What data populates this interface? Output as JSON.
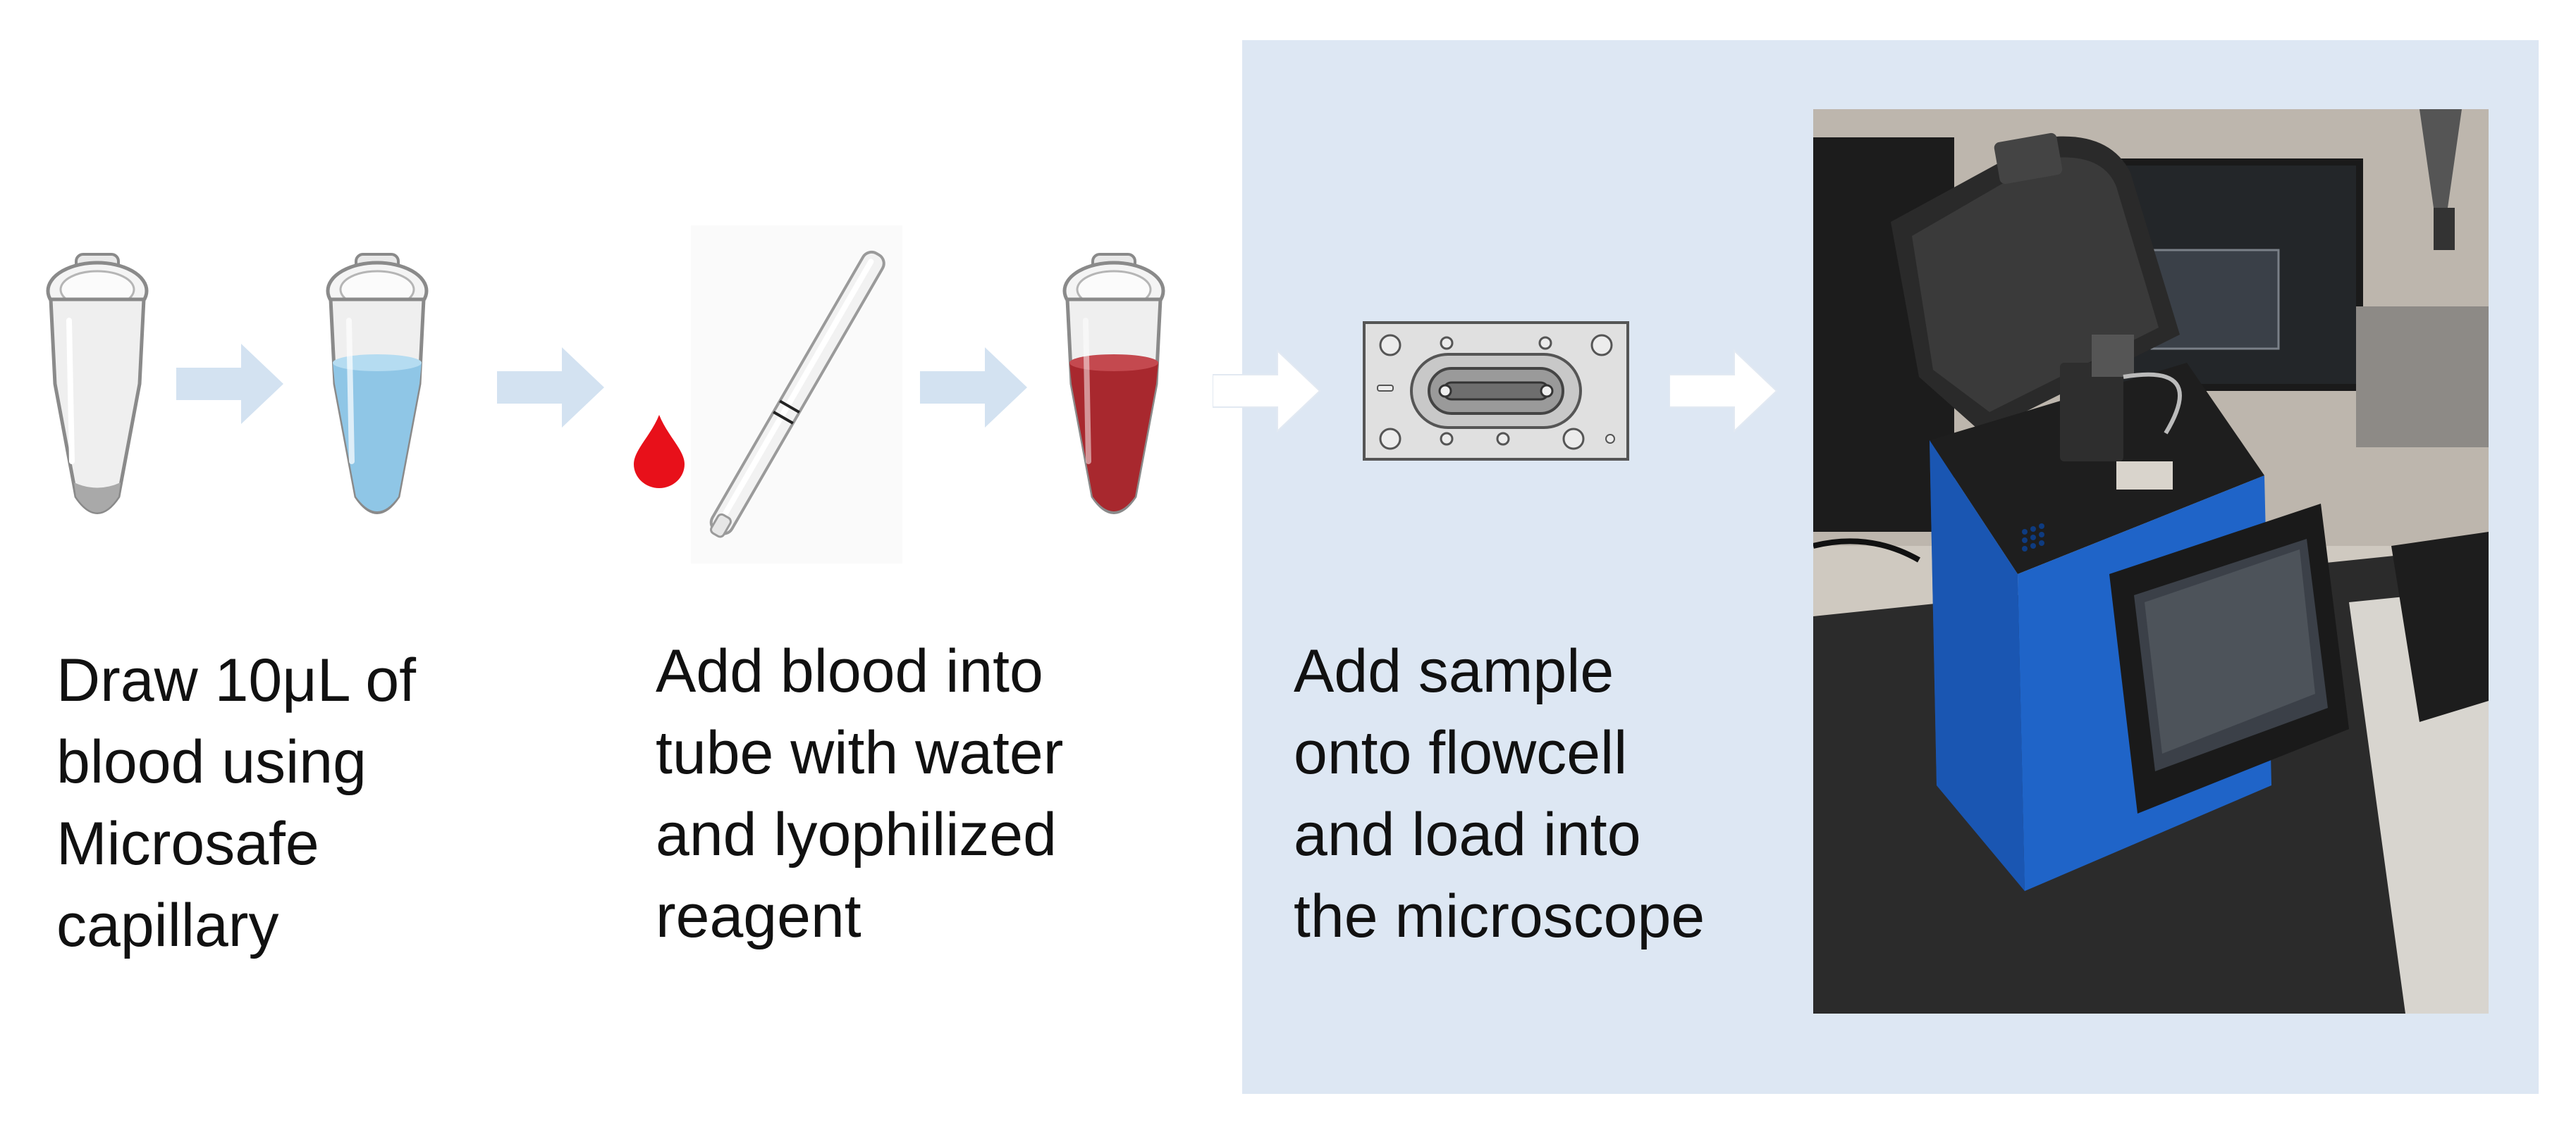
{
  "steps": [
    {
      "caption_lines": [
        "Draw 10μL of",
        "blood using",
        "Microsafe",
        "capillary"
      ]
    },
    {
      "caption_lines": [
        "Add blood into",
        "tube with water",
        "and lyophilized",
        "reagent"
      ]
    },
    {
      "caption_lines": [
        "Add sample",
        "onto flowcell",
        "and load into",
        "the microscope"
      ]
    }
  ],
  "icons": {
    "empty_tube": "empty-microcentrifuge-tube-icon",
    "water_tube": "water-filled-tube-icon",
    "blood_drop": "blood-drop-icon",
    "capillary": "capillary-tube-icon",
    "blood_tube": "blood-filled-tube-icon",
    "flowcell": "flowcell-chip-icon",
    "microscope_photo": "microscope-device-photo"
  },
  "colors": {
    "panel_background": "#dde7f3",
    "arrow_blue": "#d3e2f1",
    "arrow_white": "#ffffff",
    "water": "#8fc6e6",
    "blood": "#a8282e",
    "blood_drop": "#e8101a",
    "device_blue": "#1f64c8"
  }
}
